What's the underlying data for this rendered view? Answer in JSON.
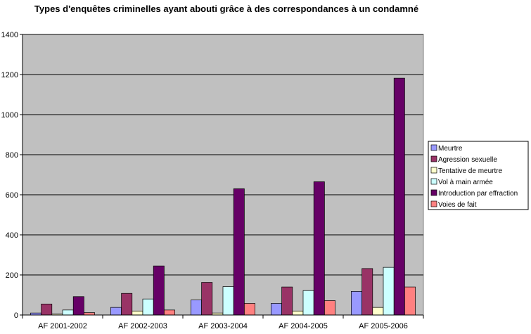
{
  "chart_data": {
    "type": "bar",
    "title": "Types d'enquêtes criminelles ayant abouti grâce à des correspondances à un condamné",
    "xlabel": "",
    "ylabel": "",
    "ylim": [
      0,
      1400
    ],
    "yticks": [
      0,
      200,
      400,
      600,
      800,
      1000,
      1200,
      1400
    ],
    "grid": true,
    "legend_position": "right",
    "categories": [
      "AF 2001-2002",
      "AF 2002-2003",
      "AF 2003-2004",
      "AF 2004-2005",
      "AF 2005-2006"
    ],
    "series": [
      {
        "name": "Meurtre",
        "color": "#9999ff",
        "values": [
          10,
          38,
          75,
          58,
          118
        ]
      },
      {
        "name": "Agression sexuelle",
        "color": "#993366",
        "values": [
          55,
          108,
          163,
          140,
          232
        ]
      },
      {
        "name": "Tentative de meurtre",
        "color": "#ffffcc",
        "values": [
          5,
          20,
          10,
          20,
          38
        ]
      },
      {
        "name": "Vol à main armée",
        "color": "#ccffff",
        "values": [
          25,
          80,
          142,
          122,
          238
        ]
      },
      {
        "name": "Introduction par effraction",
        "color": "#660066",
        "values": [
          92,
          245,
          630,
          665,
          1182
        ]
      },
      {
        "name": "Voies de fait",
        "color": "#ff8080",
        "values": [
          12,
          25,
          58,
          72,
          140
        ]
      }
    ],
    "colors": {
      "plot_background": "#c0c0c0",
      "gridline": "#000000",
      "plot_border": "#808080"
    }
  }
}
